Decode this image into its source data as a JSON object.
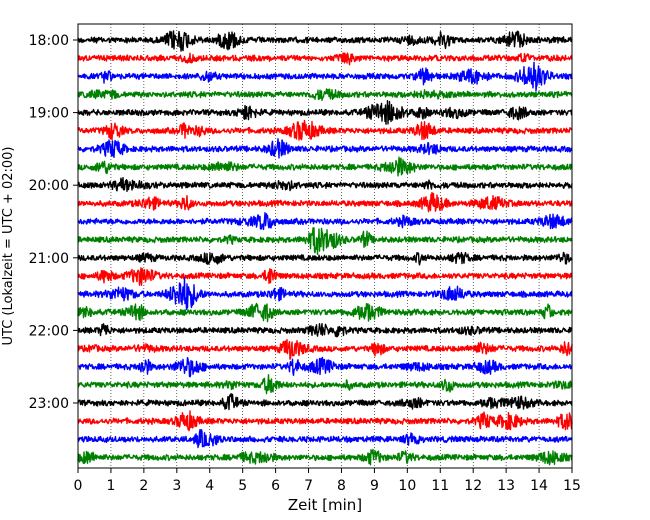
{
  "chart_data": {
    "type": "line",
    "title": "",
    "xlabel": "Zeit  [min]",
    "ylabel": "UTC (Lokalzeit = UTC + 02:00)",
    "xlim": [
      0,
      15
    ],
    "x_ticks": [
      0,
      1,
      2,
      3,
      4,
      5,
      6,
      7,
      8,
      9,
      10,
      11,
      12,
      13,
      14,
      15
    ],
    "x_tick_labels": [
      "0",
      "1",
      "2",
      "3",
      "4",
      "5",
      "6",
      "7",
      "8",
      "9",
      "10",
      "11",
      "12",
      "13",
      "14",
      "15"
    ],
    "y_tick_labels": [
      "18:00",
      "19:00",
      "20:00",
      "21:00",
      "22:00",
      "23:00"
    ],
    "y_tick_rows": [
      0,
      4,
      8,
      12,
      16,
      20
    ],
    "grid": "vertical dotted",
    "trace_colors": [
      "#000000",
      "#ff0000",
      "#0000ff",
      "#008000"
    ],
    "traces": [
      {
        "start": "18:00",
        "color": "#000000"
      },
      {
        "start": "18:15",
        "color": "#ff0000"
      },
      {
        "start": "18:30",
        "color": "#0000ff"
      },
      {
        "start": "18:45",
        "color": "#008000"
      },
      {
        "start": "19:00",
        "color": "#000000"
      },
      {
        "start": "19:15",
        "color": "#ff0000"
      },
      {
        "start": "19:30",
        "color": "#0000ff"
      },
      {
        "start": "19:45",
        "color": "#008000"
      },
      {
        "start": "20:00",
        "color": "#000000"
      },
      {
        "start": "20:15",
        "color": "#ff0000"
      },
      {
        "start": "20:30",
        "color": "#0000ff"
      },
      {
        "start": "20:45",
        "color": "#008000"
      },
      {
        "start": "21:00",
        "color": "#000000"
      },
      {
        "start": "21:15",
        "color": "#ff0000"
      },
      {
        "start": "21:30",
        "color": "#0000ff"
      },
      {
        "start": "21:45",
        "color": "#008000"
      },
      {
        "start": "22:00",
        "color": "#000000"
      },
      {
        "start": "22:15",
        "color": "#ff0000"
      },
      {
        "start": "22:30",
        "color": "#0000ff"
      },
      {
        "start": "22:45",
        "color": "#008000"
      },
      {
        "start": "23:00",
        "color": "#000000"
      },
      {
        "start": "23:15",
        "color": "#ff0000"
      },
      {
        "start": "23:30",
        "color": "#0000ff"
      },
      {
        "start": "23:45",
        "color": "#008000"
      }
    ]
  }
}
